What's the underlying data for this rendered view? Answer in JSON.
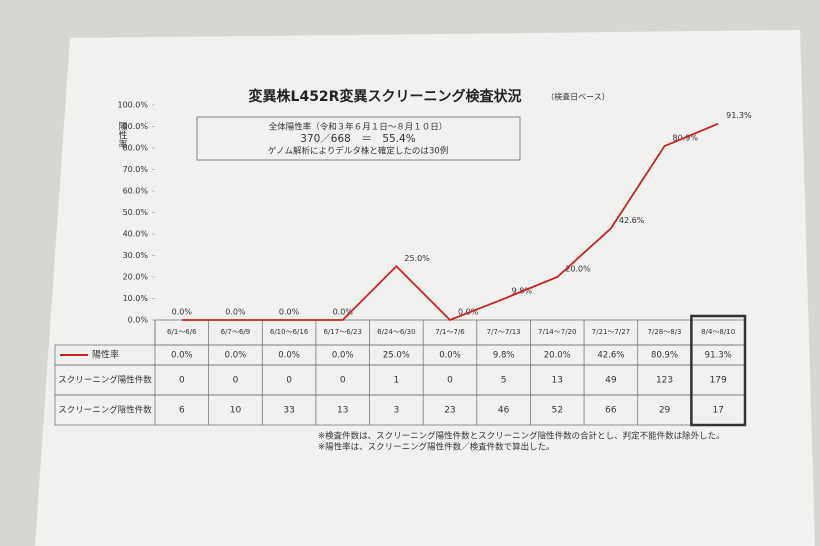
{
  "chart_data": {
    "type": "line",
    "title": "変異株L452R変異スクリーニング検査状況",
    "subtitle": "（検査日ベース）",
    "y_label": "陽性率",
    "summary": [
      "全体陽性率（令和３年６月１日～８月１０日）",
      "370／668　＝　55.4%",
      "ゲノム解析によりデルタ株と確定したのは30例"
    ],
    "categories": [
      "6/1～6/6",
      "6/7～6/9",
      "6/10～6/16",
      "6/17～6/23",
      "6/24～6/30",
      "7/1～7/6",
      "7/7～7/13",
      "7/14～7/20",
      "7/21～7/27",
      "7/28～8/3",
      "8/4～8/10"
    ],
    "series": [
      {
        "name": "陽性率",
        "color": "#cc2222",
        "values": [
          0,
          0,
          0,
          0,
          25,
          0,
          9.8,
          20,
          42.6,
          80.9,
          91.3
        ],
        "value_labels": [
          "0.0%",
          "0.0%",
          "0.0%",
          "0.0%",
          "25.0%",
          "0.0%",
          "9.8%",
          "20.0%",
          "42.6%",
          "80.9%",
          "91.3%"
        ]
      }
    ],
    "table_rows": [
      {
        "label": "スクリーニング陽性件数",
        "values": [
          0,
          0,
          0,
          0,
          1,
          0,
          5,
          13,
          49,
          123,
          179
        ]
      },
      {
        "label": "スクリーニング陰性件数",
        "values": [
          6,
          10,
          33,
          13,
          3,
          23,
          46,
          52,
          66,
          29,
          17
        ]
      }
    ],
    "ylim": [
      0,
      100
    ],
    "yticks": [
      {
        "value": 0,
        "label": "0.0%"
      },
      {
        "value": 10,
        "label": "10.0%"
      },
      {
        "value": 20,
        "label": "20.0%"
      },
      {
        "value": 30,
        "label": "30.0%"
      },
      {
        "value": 40,
        "label": "40.0%"
      },
      {
        "value": 50,
        "label": "50.0%"
      },
      {
        "value": 60,
        "label": "60.0%"
      },
      {
        "value": 70,
        "label": "70.0%"
      },
      {
        "value": 80,
        "label": "80.0%"
      },
      {
        "value": 90,
        "label": "90.0%"
      },
      {
        "value": 100,
        "label": "100.0%"
      }
    ],
    "grid": false,
    "notes": [
      "※検査件数は、スクリーニング陽性件数とスクリーニング陰性件数の合計とし、判定不能件数は除外した。",
      "※陽性率は、スクリーニング陽性件数／検査件数で算出した。"
    ]
  }
}
